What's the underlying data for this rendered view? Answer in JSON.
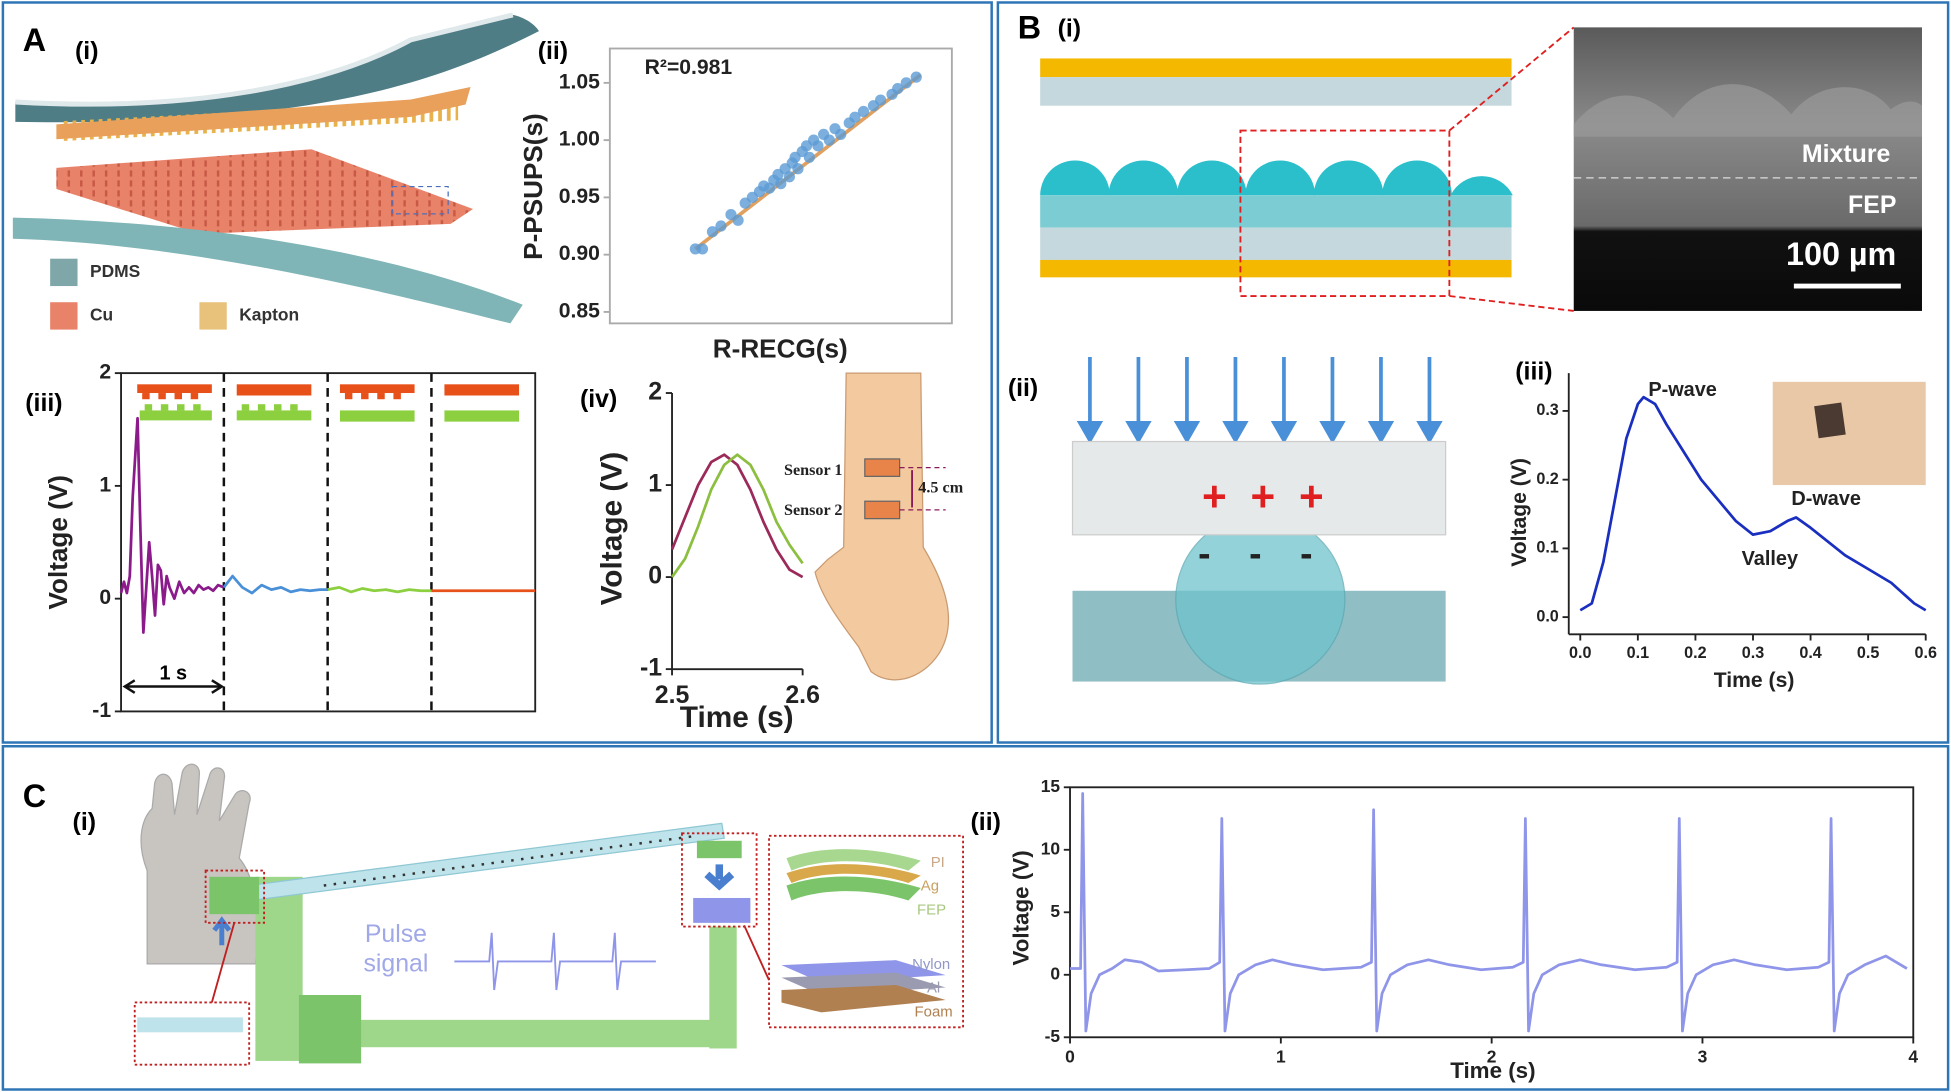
{
  "figure": {
    "panel_labels": [
      "A",
      "B",
      "C"
    ],
    "a_i": {
      "panel_label": "(i)",
      "legend": [
        "PDMS",
        "Cu",
        "Kapton"
      ]
    },
    "b_i": {
      "panel_label": "(i)",
      "layers": [
        "Mixture",
        "FEP"
      ],
      "scale_bar": "100 µm"
    },
    "b_ii": {
      "panel_label": "(ii)",
      "positive_charges": [
        "+",
        "+",
        "+"
      ],
      "negative_charges": [
        "-",
        "-",
        "-"
      ]
    },
    "c_i": {
      "panel_label": "(i)",
      "signal_label": [
        "Pulse",
        "signal"
      ],
      "upper_layers": [
        "PI",
        "Ag",
        "FEP"
      ],
      "lower_layers": [
        "Nylon",
        "Al",
        "Foam"
      ]
    }
  },
  "chart_data": [
    {
      "type": "scatter",
      "panel_label": "(ii)",
      "annotation": "R²=0.981",
      "xlabel": "R-RECG(s)",
      "ylabel": "P-PSUPS(s)",
      "xlim": [
        0.84,
        1.08
      ],
      "ylim": [
        0.84,
        1.08
      ],
      "yticks": [
        0.85,
        {
          "value": 0.9,
          "label": "0.90"
        },
        0.95,
        {
          "value": 1,
          "label": "1.00"
        },
        1.05
      ],
      "series": [
        {
          "color": "#5b9bd5",
          "x": [
            0.9,
            0.905,
            0.912,
            0.918,
            0.925,
            0.93,
            0.935,
            0.94,
            0.945,
            0.948,
            0.952,
            0.955,
            0.958,
            0.96,
            0.963,
            0.966,
            0.968,
            0.97,
            0.972,
            0.975,
            0.978,
            0.98,
            0.983,
            0.986,
            0.99,
            0.994,
            0.998,
            1.002,
            1.008,
            1.012,
            1.018,
            1.025,
            1.03,
            1.038,
            1.042,
            1.048,
            1.055
          ],
          "values": [
            0.905,
            0.905,
            0.92,
            0.925,
            0.935,
            0.93,
            0.945,
            0.95,
            0.955,
            0.96,
            0.958,
            0.965,
            0.97,
            0.962,
            0.975,
            0.968,
            0.98,
            0.985,
            0.975,
            0.99,
            0.995,
            0.985,
            1.0,
            0.995,
            1.005,
            1.0,
            1.01,
            1.005,
            1.015,
            1.02,
            1.025,
            1.03,
            1.035,
            1.04,
            1.045,
            1.05,
            1.055
          ]
        }
      ],
      "fit": {
        "color": "#e0a060",
        "x": [
          0.9,
          1.058
        ],
        "values": [
          0.905,
          1.057
        ]
      }
    },
    {
      "type": "line",
      "panel_label": "(iii)",
      "ylabel": "Voltage (V)",
      "scale_label": "1 s",
      "xlim": [
        0,
        4.27
      ],
      "ylim": [
        -1,
        2
      ],
      "yticks": [
        -1,
        0,
        1,
        2
      ],
      "separators": [
        1.06,
        2.13,
        3.2
      ],
      "series": [
        {
          "color": "#8b1a8b",
          "x": [
            0,
            0.03,
            0.06,
            0.09,
            0.12,
            0.17,
            0.2,
            0.23,
            0.26,
            0.29,
            0.32,
            0.35,
            0.38,
            0.41,
            0.44,
            0.47,
            0.5,
            0.55,
            0.6,
            0.65,
            0.7,
            0.75,
            0.8,
            0.85,
            0.9,
            0.95,
            1.0,
            1.06
          ],
          "values": [
            0.05,
            0.15,
            0.05,
            0.2,
            0.9,
            1.6,
            0.6,
            -0.3,
            0.1,
            0.5,
            0.2,
            -0.15,
            0.3,
            0.25,
            -0.05,
            0.2,
            0.1,
            0.0,
            0.15,
            0.05,
            0.1,
            0.05,
            0.12,
            0.08,
            0.1,
            0.07,
            0.12,
            0.1
          ]
        },
        {
          "color": "#4a90d9",
          "x": [
            1.06,
            1.15,
            1.25,
            1.35,
            1.45,
            1.55,
            1.65,
            1.75,
            1.85,
            1.95,
            2.05,
            2.13
          ],
          "values": [
            0.1,
            0.2,
            0.1,
            0.05,
            0.12,
            0.08,
            0.1,
            0.06,
            0.08,
            0.07,
            0.08,
            0.08
          ]
        },
        {
          "color": "#8ccf3f",
          "x": [
            2.13,
            2.25,
            2.37,
            2.49,
            2.61,
            2.73,
            2.85,
            2.97,
            3.09,
            3.2
          ],
          "values": [
            0.08,
            0.1,
            0.06,
            0.09,
            0.07,
            0.08,
            0.06,
            0.08,
            0.07,
            0.07
          ]
        },
        {
          "color": "#e8501a",
          "x": [
            3.2,
            3.5,
            3.8,
            4.1,
            4.27
          ],
          "values": [
            0.07,
            0.07,
            0.07,
            0.07,
            0.07
          ]
        }
      ]
    },
    {
      "type": "line",
      "panel_label": "(iv)",
      "xlabel": "Time (s)",
      "ylabel": "Voltage (V)",
      "annotations": [
        "Sensor 1",
        "Sensor 2",
        "4.5 cm"
      ],
      "xlim": [
        2.5,
        2.6
      ],
      "ylim": [
        -1,
        2
      ],
      "xticks": [
        2.5,
        2.6
      ],
      "yticks": [
        -1,
        0,
        1,
        2
      ],
      "series": [
        {
          "color": "#9b2a5a",
          "x": [
            2.5,
            2.51,
            2.52,
            2.53,
            2.54,
            2.55,
            2.56,
            2.57,
            2.58,
            2.59,
            2.6
          ],
          "values": [
            0.3,
            0.65,
            1.0,
            1.25,
            1.33,
            1.22,
            0.95,
            0.6,
            0.3,
            0.08,
            0.0
          ]
        },
        {
          "color": "#8cbf3f",
          "x": [
            2.5,
            2.51,
            2.52,
            2.53,
            2.54,
            2.55,
            2.56,
            2.57,
            2.58,
            2.59,
            2.6
          ],
          "values": [
            0.0,
            0.2,
            0.55,
            0.95,
            1.22,
            1.33,
            1.22,
            0.95,
            0.6,
            0.35,
            0.15
          ]
        }
      ]
    },
    {
      "type": "line",
      "panel_label": "(iii)",
      "xlabel": "Time (s)",
      "ylabel": "Voltage (V)",
      "annotations": [
        "P-wave",
        "Valley",
        "D-wave"
      ],
      "xlim": [
        -0.02,
        0.6
      ],
      "ylim": [
        -0.025,
        0.355
      ],
      "xticks": [
        {
          "value": 0,
          "label": "0.0"
        },
        0.1,
        0.2,
        0.3,
        0.4,
        0.5,
        0.6
      ],
      "yticks": [
        {
          "value": 0,
          "label": "0.0"
        },
        0.1,
        0.2,
        0.3
      ],
      "series": [
        {
          "color": "#1a2fc0",
          "x": [
            0,
            0.02,
            0.04,
            0.06,
            0.08,
            0.1,
            0.11,
            0.13,
            0.15,
            0.18,
            0.21,
            0.24,
            0.27,
            0.3,
            0.33,
            0.36,
            0.375,
            0.4,
            0.43,
            0.46,
            0.5,
            0.54,
            0.58,
            0.6
          ],
          "values": [
            0.01,
            0.02,
            0.08,
            0.17,
            0.26,
            0.31,
            0.32,
            0.31,
            0.28,
            0.24,
            0.2,
            0.17,
            0.14,
            0.12,
            0.125,
            0.14,
            0.145,
            0.13,
            0.11,
            0.09,
            0.07,
            0.05,
            0.02,
            0.01
          ]
        }
      ]
    },
    {
      "type": "line",
      "panel_label": "(ii)",
      "xlabel": "Time (s)",
      "ylabel": "Voltage (V)",
      "xlim": [
        0,
        4
      ],
      "ylim": [
        -5,
        15
      ],
      "xticks": [
        0,
        1,
        2,
        3,
        4
      ],
      "yticks": [
        -5,
        0,
        5,
        10,
        15
      ],
      "series": [
        {
          "color": "#8f95e8",
          "x": [
            0,
            0.05,
            0.06,
            0.075,
            0.1,
            0.14,
            0.2,
            0.26,
            0.34,
            0.42,
            0.55,
            0.66,
            0.71,
            0.72,
            0.735,
            0.76,
            0.8,
            0.88,
            0.96,
            1.06,
            1.2,
            1.38,
            1.43,
            1.44,
            1.455,
            1.48,
            1.52,
            1.6,
            1.7,
            1.8,
            1.95,
            2.1,
            2.15,
            2.16,
            2.175,
            2.2,
            2.24,
            2.32,
            2.42,
            2.52,
            2.68,
            2.83,
            2.88,
            2.89,
            2.905,
            2.93,
            2.97,
            3.05,
            3.15,
            3.25,
            3.4,
            3.55,
            3.6,
            3.61,
            3.625,
            3.65,
            3.69,
            3.77,
            3.87,
            3.97
          ],
          "values": [
            0.5,
            0.5,
            14.5,
            -4.5,
            -1.5,
            0,
            0.5,
            1.2,
            1.0,
            0.3,
            0.4,
            0.5,
            1,
            12.5,
            -4.5,
            -1.5,
            0,
            0.8,
            1.2,
            0.8,
            0.4,
            0.6,
            1,
            13.2,
            -4.5,
            -1.5,
            0,
            0.8,
            1.2,
            0.8,
            0.4,
            0.6,
            1,
            12.5,
            -4.5,
            -1.5,
            0,
            0.8,
            1.2,
            0.8,
            0.4,
            0.6,
            1,
            12.5,
            -4.5,
            -1.5,
            0,
            0.8,
            1.2,
            0.8,
            0.4,
            0.6,
            1,
            12.5,
            -4.5,
            -1.5,
            0,
            0.8,
            1.5,
            0.5
          ]
        }
      ]
    }
  ]
}
